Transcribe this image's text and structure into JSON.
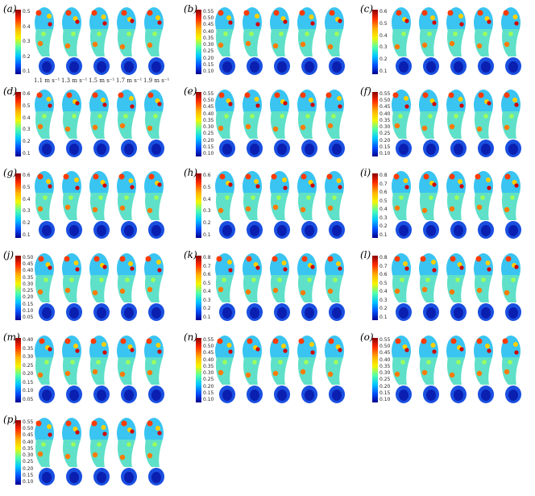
{
  "speed_labels": [
    "1.1 m s⁻¹",
    "1.3 m s⁻¹",
    "1.5 m s⁻¹",
    "1.7 m s⁻¹",
    "1.9 m s⁻¹"
  ],
  "panels": [
    {
      "label": "(a)",
      "ticks": [
        "0.5",
        "0.4",
        "0.3",
        "0.2",
        "0.1"
      ]
    },
    {
      "label": "(b)",
      "ticks": [
        "0.55",
        "0.50",
        "0.45",
        "0.40",
        "0.35",
        "0.30",
        "0.25",
        "0.20",
        "0.15",
        "0.10"
      ]
    },
    {
      "label": "(c)",
      "ticks": [
        "0.6",
        "0.5",
        "0.4",
        "0.3",
        "0.2",
        "0.1"
      ]
    },
    {
      "label": "(d)",
      "ticks": [
        "0.6",
        "0.5",
        "0.4",
        "0.3",
        "0.2",
        "0.1"
      ]
    },
    {
      "label": "(e)",
      "ticks": [
        "0.55",
        "0.50",
        "0.45",
        "0.40",
        "0.35",
        "0.30",
        "0.25",
        "0.20",
        "0.15",
        "0.10"
      ]
    },
    {
      "label": "(f)",
      "ticks": [
        "0.55",
        "0.50",
        "0.45",
        "0.40",
        "0.35",
        "0.30",
        "0.25",
        "0.20",
        "0.15",
        "0.10"
      ]
    },
    {
      "label": "(g)",
      "ticks": [
        "0.6",
        "0.5",
        "0.4",
        "0.3",
        "0.2",
        "0.1"
      ]
    },
    {
      "label": "(h)",
      "ticks": [
        "0.6",
        "0.5",
        "0.4",
        "0.3",
        "0.2",
        "0.1"
      ]
    },
    {
      "label": "(i)",
      "ticks": [
        "0.8",
        "0.7",
        "0.6",
        "0.5",
        "0.4",
        "0.3",
        "0.2",
        "0.1"
      ]
    },
    {
      "label": "(j)",
      "ticks": [
        "0.50",
        "0.45",
        "0.40",
        "0.35",
        "0.30",
        "0.25",
        "0.20",
        "0.15",
        "0.10",
        "0.05"
      ]
    },
    {
      "label": "(k)",
      "ticks": [
        "0.8",
        "0.7",
        "0.6",
        "0.5",
        "0.4",
        "0.3",
        "0.2",
        "0.1"
      ]
    },
    {
      "label": "(l)",
      "ticks": [
        "0.8",
        "0.7",
        "0.6",
        "0.5",
        "0.4",
        "0.3",
        "0.2",
        "0.1"
      ]
    },
    {
      "label": "(m)",
      "ticks": [
        "0.40",
        "0.35",
        "0.30",
        "0.25",
        "0.20",
        "0.15",
        "0.10",
        "0.05"
      ]
    },
    {
      "label": "(n)",
      "ticks": [
        "0.55",
        "0.50",
        "0.45",
        "0.40",
        "0.35",
        "0.30",
        "0.25",
        "0.20",
        "0.15",
        "0.10"
      ]
    },
    {
      "label": "(o)",
      "ticks": [
        "0.55",
        "0.50",
        "0.45",
        "0.40",
        "0.35",
        "0.30",
        "0.25",
        "0.20",
        "0.15",
        "0.10"
      ]
    },
    {
      "label": "(p)",
      "ticks": [
        "0.55",
        "0.50",
        "0.45",
        "0.40",
        "0.35",
        "0.30",
        "0.25",
        "0.20",
        "0.15",
        "0.10"
      ]
    }
  ],
  "colors": {
    "dark_red": "#8b0000",
    "red": "#ff2a00",
    "orange": "#ffb300",
    "yellow": "#f5f500",
    "green": "#52ffa8",
    "cyan": "#00c8ff",
    "blue": "#0050ff",
    "dark_blue": "#00008f"
  }
}
